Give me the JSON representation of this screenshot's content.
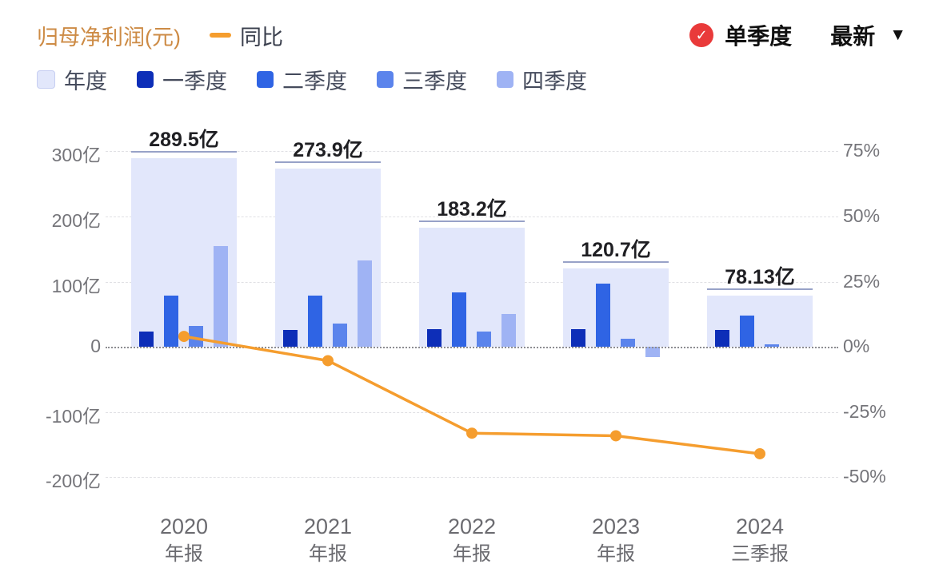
{
  "header": {
    "title": "归母净利润(元)",
    "yoy_legend": "同比",
    "single_quarter": "单季度",
    "latest": "最新",
    "check_glyph": "✓",
    "caret_glyph": "▼"
  },
  "colors": {
    "title": "#cd8b45",
    "line": "#f59d2e",
    "annual_fill": "#e2e7fb",
    "annual_cap": "#98a2c8",
    "q1": "#0d2eb8",
    "q2": "#2f64e4",
    "q3": "#5b84ec",
    "q4": "#9fb3f4",
    "badge_red": "#e93a3a"
  },
  "legend": [
    {
      "label": "年度",
      "key": "annual"
    },
    {
      "label": "一季度",
      "key": "q1"
    },
    {
      "label": "二季度",
      "key": "q2"
    },
    {
      "label": "三季度",
      "key": "q3"
    },
    {
      "label": "四季度",
      "key": "q4"
    }
  ],
  "chart_data": {
    "type": "bar",
    "title": "归母净利润(元)",
    "legend_position": "top",
    "grid": true,
    "categories": [
      "2020",
      "2021",
      "2022",
      "2023",
      "2024"
    ],
    "category_sublabels": [
      "年报",
      "年报",
      "年报",
      "年报",
      "三季报"
    ],
    "annual": {
      "name": "年度",
      "values_yi": [
        289.5,
        273.9,
        183.2,
        120.7,
        78.13
      ],
      "labels": [
        "289.5亿",
        "273.9亿",
        "183.2亿",
        "120.7亿",
        "78.13亿"
      ]
    },
    "series": [
      {
        "name": "一季度",
        "values_yi": [
          23.5,
          26,
          27,
          27,
          26
        ]
      },
      {
        "name": "二季度",
        "values_yi": [
          79,
          79,
          83,
          97,
          48
        ]
      },
      {
        "name": "三季度",
        "values_yi": [
          32,
          36,
          23,
          12,
          4.13
        ]
      },
      {
        "name": "四季度",
        "values_yi": [
          155,
          132.9,
          50.2,
          -15.3,
          null
        ]
      }
    ],
    "line": {
      "name": "同比",
      "unit": "%",
      "values_percent": [
        4,
        -5.3,
        -33.1,
        -34.1,
        -41
      ]
    },
    "left_axis": {
      "unit": "亿",
      "ticks": [
        300,
        200,
        100,
        0,
        -100,
        -200
      ],
      "labels": [
        "300亿",
        "200亿",
        "100亿",
        "0",
        "-100亿",
        "-200亿"
      ],
      "range": [
        -240,
        336
      ]
    },
    "right_axis": {
      "unit": "%",
      "ticks": [
        75,
        50,
        25,
        0,
        -25,
        -50
      ],
      "labels": [
        "75%",
        "50%",
        "25%",
        "0%",
        "-25%",
        "-50%"
      ],
      "percent_per_yi": 0.25
    }
  }
}
